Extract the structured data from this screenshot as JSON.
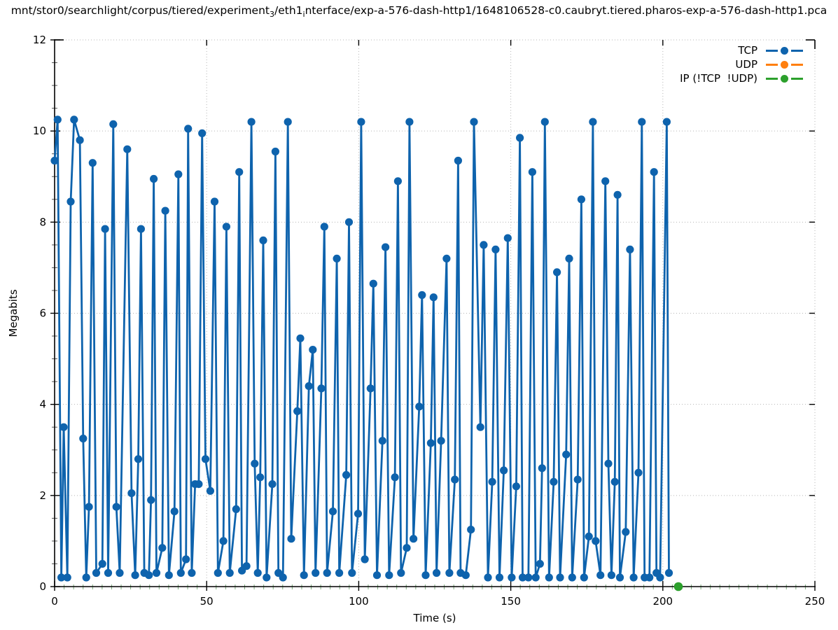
{
  "title": {
    "segments": [
      {
        "text": "mnt/stor0/searchlight/corpus/tiered/experiment"
      },
      {
        "text": "3",
        "sub": true
      },
      {
        "text": "/eth1"
      },
      {
        "text": "i",
        "sub": true
      },
      {
        "text": "nterface/exp-a-576-dash-http1/1648106528-c0.caubryt.tiered.pharos-exp-a-576-dash-http1.pca"
      }
    ]
  },
  "colors": {
    "tcp": "#0e63ad",
    "udp": "#ff7f0e",
    "ip": "#2ca02c",
    "grid": "#b5b5b5",
    "axis": "#000000",
    "minor_tick": "#79aa79",
    "text": "#000000",
    "background": "#ffffff"
  },
  "legend": {
    "entries": [
      {
        "label": "TCP",
        "color_key": "tcp"
      },
      {
        "label": "UDP",
        "color_key": "udp"
      },
      {
        "label": "IP (!TCP  !UDP)",
        "color_key": "ip"
      }
    ]
  },
  "chart_data": {
    "type": "line",
    "xlabel": "Time (s)",
    "ylabel": "Megabits",
    "xlim": [
      0,
      250
    ],
    "ylim": [
      0,
      12
    ],
    "xticks": [
      0,
      50,
      100,
      150,
      200,
      250
    ],
    "yticks": [
      0,
      2,
      4,
      6,
      8,
      10,
      12
    ],
    "x_minor_step": 3.125,
    "y_minor_step": 0.5,
    "grid": true,
    "legend_position": "top-right",
    "series": [
      {
        "name": "TCP",
        "color_key": "tcp",
        "marker": "filled-circle",
        "points": [
          [
            0,
            9.35
          ],
          [
            1,
            10.25
          ],
          [
            2.2,
            0.2
          ],
          [
            3,
            3.5
          ],
          [
            4.2,
            0.2
          ],
          [
            5.3,
            8.45
          ],
          [
            6.4,
            10.25
          ],
          [
            8.3,
            9.8
          ],
          [
            9.4,
            3.25
          ],
          [
            10.4,
            0.2
          ],
          [
            11.3,
            1.75
          ],
          [
            12.5,
            9.3
          ],
          [
            13.7,
            0.3
          ],
          [
            15.7,
            0.5
          ],
          [
            16.6,
            7.85
          ],
          [
            17.6,
            0.3
          ],
          [
            19.3,
            10.15
          ],
          [
            20.3,
            1.75
          ],
          [
            21.4,
            0.3
          ],
          [
            23.9,
            9.6
          ],
          [
            25.3,
            2.05
          ],
          [
            26.5,
            0.25
          ],
          [
            27.5,
            2.8
          ],
          [
            28.4,
            7.85
          ],
          [
            29.5,
            0.3
          ],
          [
            31,
            0.25
          ],
          [
            31.7,
            1.9
          ],
          [
            32.6,
            8.95
          ],
          [
            33.5,
            0.3
          ],
          [
            35.4,
            0.85
          ],
          [
            36.4,
            8.25
          ],
          [
            37.6,
            0.25
          ],
          [
            39.4,
            1.65
          ],
          [
            40.7,
            9.05
          ],
          [
            41.5,
            0.3
          ],
          [
            43.2,
            0.6
          ],
          [
            43.9,
            10.05
          ],
          [
            45.1,
            0.3
          ],
          [
            46.2,
            2.25
          ],
          [
            47.4,
            2.25
          ],
          [
            48.5,
            9.95
          ],
          [
            49.6,
            2.8
          ],
          [
            51.2,
            2.1
          ],
          [
            52.6,
            8.45
          ],
          [
            53.7,
            0.3
          ],
          [
            55.5,
            1
          ],
          [
            56.5,
            7.9
          ],
          [
            57.6,
            0.3
          ],
          [
            59.7,
            1.7
          ],
          [
            60.7,
            9.1
          ],
          [
            61.6,
            0.35
          ],
          [
            63.1,
            0.45
          ],
          [
            64.7,
            10.2
          ],
          [
            65.8,
            2.7
          ],
          [
            66.8,
            0.3
          ],
          [
            67.6,
            2.4
          ],
          [
            68.6,
            7.6
          ],
          [
            69.7,
            0.2
          ],
          [
            71.6,
            2.25
          ],
          [
            72.6,
            9.55
          ],
          [
            73.6,
            0.3
          ],
          [
            75.1,
            0.2
          ],
          [
            76.7,
            10.2
          ],
          [
            77.8,
            1.05
          ],
          [
            79.8,
            3.85
          ],
          [
            80.8,
            5.45
          ],
          [
            82,
            0.25
          ],
          [
            83.6,
            4.4
          ],
          [
            84.9,
            5.2
          ],
          [
            85.8,
            0.3
          ],
          [
            87.7,
            4.35
          ],
          [
            88.7,
            7.9
          ],
          [
            89.6,
            0.3
          ],
          [
            91.5,
            1.65
          ],
          [
            92.8,
            7.2
          ],
          [
            93.6,
            0.3
          ],
          [
            95.9,
            2.45
          ],
          [
            96.8,
            8
          ],
          [
            97.8,
            0.3
          ],
          [
            99.8,
            1.6
          ],
          [
            100.8,
            10.2
          ],
          [
            102,
            0.6
          ],
          [
            103.9,
            4.35
          ],
          [
            104.8,
            6.65
          ],
          [
            106,
            0.25
          ],
          [
            107.8,
            3.2
          ],
          [
            108.8,
            7.45
          ],
          [
            110,
            0.25
          ],
          [
            111.9,
            2.4
          ],
          [
            112.9,
            8.9
          ],
          [
            113.9,
            0.3
          ],
          [
            115.8,
            0.85
          ],
          [
            116.7,
            10.2
          ],
          [
            118,
            1.05
          ],
          [
            119.9,
            3.95
          ],
          [
            120.8,
            6.4
          ],
          [
            122,
            0.25
          ],
          [
            123.7,
            3.15
          ],
          [
            124.6,
            6.35
          ],
          [
            125.6,
            0.3
          ],
          [
            127.1,
            3.2
          ],
          [
            128.9,
            7.2
          ],
          [
            129.8,
            0.3
          ],
          [
            131.6,
            2.35
          ],
          [
            132.7,
            9.35
          ],
          [
            133.5,
            0.3
          ],
          [
            135.2,
            0.25
          ],
          [
            136.9,
            1.25
          ],
          [
            137.9,
            10.2
          ],
          [
            140,
            3.5
          ],
          [
            141.1,
            7.5
          ],
          [
            142.5,
            0.2
          ],
          [
            143.9,
            2.3
          ],
          [
            145,
            7.4
          ],
          [
            146.3,
            0.2
          ],
          [
            147.7,
            2.55
          ],
          [
            149,
            7.65
          ],
          [
            150.3,
            0.2
          ],
          [
            151.8,
            2.2
          ],
          [
            153,
            9.85
          ],
          [
            153.9,
            0.2
          ],
          [
            155.8,
            0.2
          ],
          [
            157.1,
            9.1
          ],
          [
            158.2,
            0.2
          ],
          [
            159.6,
            0.5
          ],
          [
            160.3,
            2.6
          ],
          [
            161.2,
            10.2
          ],
          [
            162.6,
            0.2
          ],
          [
            164.1,
            2.3
          ],
          [
            165.2,
            6.9
          ],
          [
            166.2,
            0.2
          ],
          [
            168.2,
            2.9
          ],
          [
            169.2,
            7.2
          ],
          [
            170.2,
            0.2
          ],
          [
            172,
            2.35
          ],
          [
            173.2,
            8.5
          ],
          [
            174.1,
            0.2
          ],
          [
            175.7,
            1.1
          ],
          [
            177,
            10.2
          ],
          [
            177.9,
            1
          ],
          [
            179.5,
            0.25
          ],
          [
            181.1,
            8.9
          ],
          [
            182.1,
            2.7
          ],
          [
            183.1,
            0.25
          ],
          [
            184.2,
            2.3
          ],
          [
            185.1,
            8.6
          ],
          [
            185.9,
            0.2
          ],
          [
            187.8,
            1.2
          ],
          [
            189.2,
            7.4
          ],
          [
            190.4,
            0.2
          ],
          [
            192,
            2.5
          ],
          [
            193.1,
            10.2
          ],
          [
            194,
            0.2
          ],
          [
            195.6,
            0.2
          ],
          [
            197.1,
            9.1
          ],
          [
            197.9,
            0.3
          ],
          [
            199.1,
            0.2
          ],
          [
            201.3,
            10.2
          ],
          [
            202,
            0.3
          ]
        ]
      },
      {
        "name": "UDP",
        "color_key": "udp",
        "marker": "filled-circle",
        "points": []
      },
      {
        "name": "IP (!TCP  !UDP)",
        "color_key": "ip",
        "marker": "filled-circle",
        "points": [
          [
            205.1,
            0
          ]
        ]
      }
    ]
  }
}
